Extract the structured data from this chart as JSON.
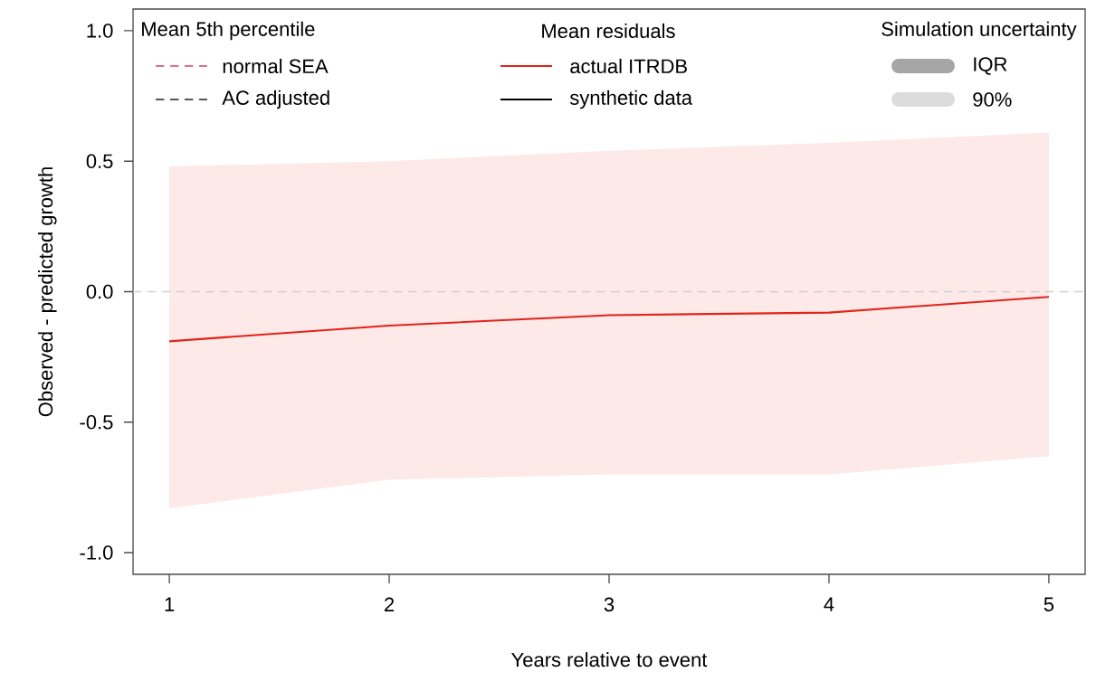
{
  "chart_data": {
    "type": "line",
    "xlabel": "Years relative to event",
    "ylabel": "Observed - predicted growth",
    "x": [
      1,
      2,
      3,
      4,
      5
    ],
    "series": [
      {
        "name": "normal SEA",
        "color": "#e0708a",
        "line_style": "dashed",
        "values": [
          null,
          null,
          null,
          null,
          null
        ]
      },
      {
        "name": "AC adjusted",
        "color": "#555555",
        "line_style": "dashed",
        "values": [
          null,
          null,
          null,
          null,
          null
        ]
      },
      {
        "name": "actual ITRDB",
        "color": "#e2231a",
        "line_style": "solid",
        "values": [
          -0.19,
          -0.13,
          -0.09,
          -0.08,
          -0.02
        ],
        "lower": [
          -0.83,
          -0.72,
          -0.7,
          -0.7,
          -0.63
        ],
        "upper": [
          0.48,
          0.5,
          0.54,
          0.57,
          0.61
        ]
      },
      {
        "name": "synthetic data",
        "color": "#000000",
        "line_style": "solid",
        "values": [
          null,
          null,
          null,
          null,
          null
        ]
      },
      {
        "name": "IQR",
        "type": "area",
        "color": "#a6a6a6",
        "values": [
          null,
          null,
          null,
          null,
          null
        ]
      },
      {
        "name": "90%",
        "type": "area",
        "color": "#dcdcdc",
        "values": [
          null,
          null,
          null,
          null,
          null
        ]
      }
    ],
    "annotations": [
      "Mean 5th percentile",
      "Mean residuals",
      "Simulation uncertainty"
    ],
    "ref_lines": [
      {
        "axis": "y",
        "value": 0,
        "color": "#cccccc",
        "line_style": "dashed"
      }
    ],
    "xlim": [
      0.835,
      5.165
    ],
    "xticks": [
      1,
      2,
      3,
      4,
      5
    ],
    "ylim": [
      -1.083,
      1.083
    ],
    "yticks": [
      {
        "value": -1,
        "label": "-1.0"
      },
      {
        "value": -0.5,
        "label": "-0.5"
      },
      {
        "value": 0,
        "label": "0.0"
      },
      {
        "value": 0.5,
        "label": "0.5"
      },
      {
        "value": 1,
        "label": "1.0"
      }
    ],
    "grid": false,
    "legend": "top",
    "marker": "none"
  }
}
